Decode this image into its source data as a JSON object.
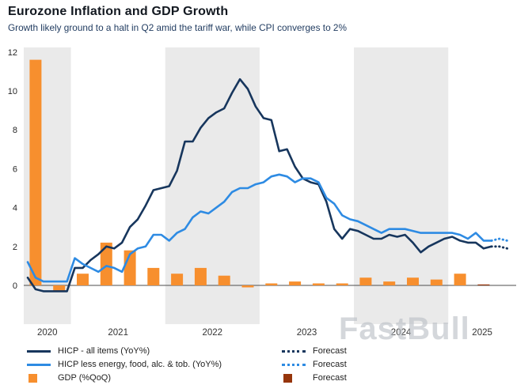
{
  "watermark": "FastBull",
  "colors": {
    "navy": "#17365D",
    "blue": "#2E8BE3",
    "orange": "#F78F2E",
    "brick": "#96350B",
    "band": "#EAEAEA",
    "zero_line": "#4D4D4D",
    "tick_text": "#262626",
    "year_text": "#333333"
  },
  "chart_data": {
    "type": "mixed",
    "title": "Eurozone Inflation and GDP Growth",
    "subtitle": "Growth likely ground to a halt in Q2 amid the tariff war, while CPI converges to 2%",
    "x_domain": [
      2020.5,
      2025.72
    ],
    "ylim": [
      -2,
      12.2
    ],
    "y_axis": {
      "ticks": [
        0,
        2,
        4,
        6,
        8,
        10,
        12
      ]
    },
    "x_axis": {
      "year_labels": [
        "2020",
        "2021",
        "2022",
        "2023",
        "2024",
        "2025"
      ],
      "shaded_years": [
        2020,
        2022,
        2024
      ]
    },
    "series": [
      {
        "key": "hicp_all",
        "name": "HICP - all items (YoY%)",
        "type": "line",
        "color_key": "navy",
        "start": [
          2020,
          7
        ],
        "values": [
          0.4,
          -0.2,
          -0.3,
          -0.3,
          -0.3,
          -0.3,
          0.9,
          0.9,
          1.3,
          1.6,
          2.0,
          1.9,
          2.2,
          3.0,
          3.4,
          4.1,
          4.9,
          5.0,
          5.1,
          5.9,
          7.4,
          7.4,
          8.1,
          8.6,
          8.9,
          9.1,
          9.9,
          10.6,
          10.1,
          9.2,
          8.6,
          8.5,
          6.9,
          7.0,
          6.1,
          5.5,
          5.3,
          5.2,
          4.3,
          2.9,
          2.4,
          2.9,
          2.8,
          2.6,
          2.4,
          2.4,
          2.6,
          2.5,
          2.6,
          2.2,
          1.7,
          2.0,
          2.2,
          2.4,
          2.5,
          2.3,
          2.2,
          2.2,
          1.9,
          2.0
        ]
      },
      {
        "key": "hicp_core",
        "name": "HICP less energy, food, alc. & tob. (YoY%)",
        "type": "line",
        "color_key": "blue",
        "start": [
          2020,
          7
        ],
        "values": [
          1.2,
          0.4,
          0.2,
          0.2,
          0.2,
          0.2,
          1.4,
          1.1,
          0.9,
          0.7,
          1.0,
          0.9,
          0.7,
          1.6,
          1.9,
          2.0,
          2.6,
          2.6,
          2.3,
          2.7,
          2.9,
          3.5,
          3.8,
          3.7,
          4.0,
          4.3,
          4.8,
          5.0,
          5.0,
          5.2,
          5.3,
          5.6,
          5.7,
          5.6,
          5.3,
          5.5,
          5.5,
          5.3,
          4.5,
          4.2,
          3.6,
          3.4,
          3.3,
          3.1,
          2.9,
          2.7,
          2.9,
          2.9,
          2.9,
          2.8,
          2.7,
          2.7,
          2.7,
          2.7,
          2.7,
          2.6,
          2.4,
          2.7,
          2.3,
          2.3
        ]
      },
      {
        "key": "hicp_all_forecast",
        "name": "Forecast",
        "type": "line_dotted",
        "color_key": "navy",
        "start": [
          2025,
          6
        ],
        "values": [
          2.0,
          2.0,
          1.9
        ]
      },
      {
        "key": "hicp_core_forecast",
        "name": "Forecast",
        "type": "line_dotted",
        "color_key": "blue",
        "start": [
          2025,
          6
        ],
        "values": [
          2.3,
          2.4,
          2.3
        ]
      },
      {
        "key": "gdp",
        "name": "GDP (%QoQ)",
        "type": "bar",
        "color_key": "orange",
        "points": [
          [
            "2020Q3",
            11.6
          ],
          [
            "2020Q4",
            -0.3
          ],
          [
            "2021Q1",
            0.6
          ],
          [
            "2021Q2",
            2.2
          ],
          [
            "2021Q3",
            1.8
          ],
          [
            "2021Q4",
            0.9
          ],
          [
            "2022Q1",
            0.6
          ],
          [
            "2022Q2",
            0.9
          ],
          [
            "2022Q3",
            0.5
          ],
          [
            "2022Q4",
            -0.1
          ],
          [
            "2023Q1",
            0.1
          ],
          [
            "2023Q2",
            0.2
          ],
          [
            "2023Q3",
            0.1
          ],
          [
            "2023Q4",
            0.1
          ],
          [
            "2024Q1",
            0.4
          ],
          [
            "2024Q2",
            0.2
          ],
          [
            "2024Q3",
            0.4
          ],
          [
            "2024Q4",
            0.3
          ],
          [
            "2025Q1",
            0.6
          ]
        ]
      },
      {
        "key": "gdp_forecast",
        "name": "Forecast",
        "type": "bar",
        "color_key": "brick",
        "points": [
          [
            "2025Q2",
            0.05
          ]
        ]
      }
    ],
    "legend": [
      {
        "swatch": "line",
        "color_key": "navy",
        "label": "HICP - all items (YoY%)"
      },
      {
        "swatch": "line",
        "color_key": "blue",
        "label": "HICP less energy, food, alc. & tob. (YoY%)"
      },
      {
        "swatch": "square",
        "color_key": "orange",
        "label": "GDP (%QoQ)"
      },
      {
        "swatch": "dotted",
        "color_key": "navy",
        "label": "Forecast"
      },
      {
        "swatch": "dotted",
        "color_key": "blue",
        "label": "Forecast"
      },
      {
        "swatch": "square",
        "color_key": "brick",
        "label": "Forecast"
      }
    ]
  }
}
